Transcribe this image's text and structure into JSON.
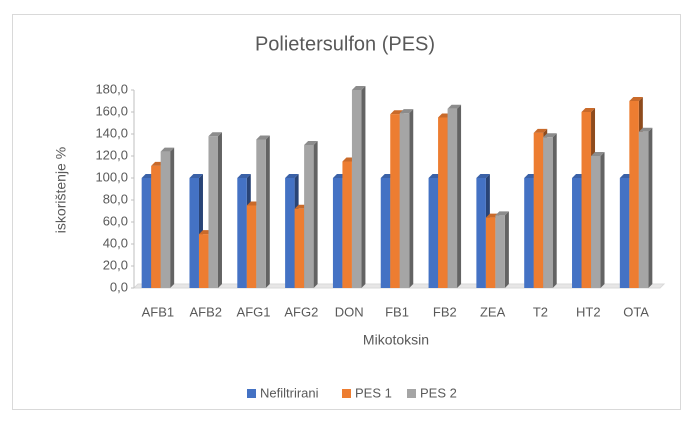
{
  "chart_data": {
    "type": "bar3d",
    "title": "Polietersulfon (PES)",
    "x_label": "Mikotoksin",
    "y_label": "iskorištenje %",
    "categories": [
      "AFB1",
      "AFB2",
      "AFG1",
      "AFG2",
      "DON",
      "FB1",
      "FB2",
      "ZEA",
      "T2",
      "HT2",
      "OTA"
    ],
    "series": [
      {
        "name": "Nefiltrirani",
        "color": "#4472c4",
        "values": [
          100,
          100,
          100,
          100,
          100,
          100,
          100,
          100,
          100,
          100,
          100
        ]
      },
      {
        "name": "PES 1",
        "color": "#ed7d31",
        "values": [
          111,
          49,
          75,
          72,
          115,
          158,
          155,
          64,
          141,
          160,
          170
        ]
      },
      {
        "name": "PES 2",
        "color": "#a5a5a5",
        "values": [
          124,
          138,
          135,
          130,
          180,
          159,
          163,
          66,
          137,
          120,
          142
        ]
      }
    ],
    "ylim": [
      0,
      180
    ],
    "yticks": [
      {
        "value": 0,
        "label": "0,0"
      },
      {
        "value": 20,
        "label": "20,0"
      },
      {
        "value": 40,
        "label": "40,0"
      },
      {
        "value": 60,
        "label": "60,0"
      },
      {
        "value": 80,
        "label": "80,0"
      },
      {
        "value": 100,
        "label": "100,0"
      },
      {
        "value": 120,
        "label": "120,0"
      },
      {
        "value": 140,
        "label": "140,0"
      },
      {
        "value": 160,
        "label": "160,0"
      },
      {
        "value": 180,
        "label": "180,0"
      }
    ],
    "legend": "bottom"
  }
}
